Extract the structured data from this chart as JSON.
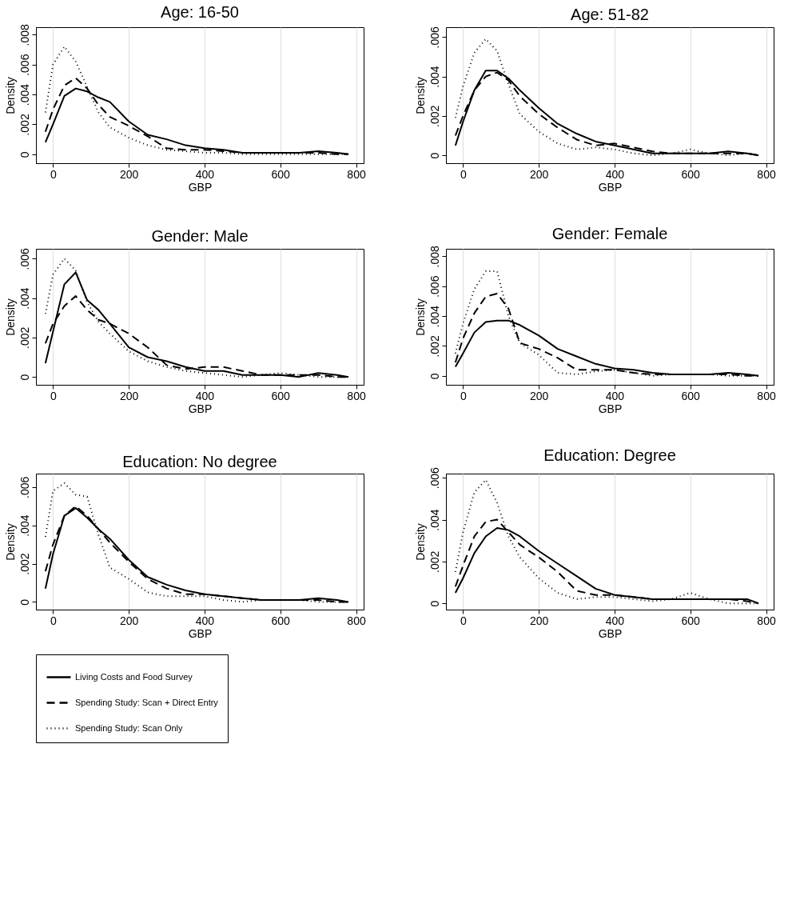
{
  "chart_data": [
    {
      "type": "line",
      "title": "Age: 16-50",
      "xlabel": "GBP",
      "ylabel": "Density",
      "x": [
        -20,
        0,
        30,
        60,
        90,
        120,
        150,
        200,
        250,
        300,
        350,
        400,
        450,
        500,
        550,
        600,
        650,
        700,
        750,
        780
      ],
      "xlim": [
        -45,
        820
      ],
      "xticks": [
        0,
        200,
        400,
        600,
        800
      ],
      "ylim": [
        -0.0006,
        0.0085
      ],
      "yticks": [
        {
          "value": 0,
          "label": "0"
        },
        {
          "value": 0.002,
          "label": ".002"
        },
        {
          "value": 0.004,
          "label": ".004"
        },
        {
          "value": 0.006,
          "label": ".006"
        },
        {
          "value": 0.008,
          "label": ".008"
        }
      ],
      "grid": "x",
      "legend": "bottom",
      "series": [
        {
          "name": "Living Costs and Food Survey",
          "color": "#000000",
          "line_style": "solid",
          "values": [
            0.0008,
            0.002,
            0.0039,
            0.0044,
            0.0042,
            0.0038,
            0.0035,
            0.0022,
            0.0013,
            0.001,
            0.0006,
            0.0004,
            0.0003,
            0.0001,
            0.0001,
            0.0001,
            0.0001,
            0.0002,
            0.0001,
            0
          ]
        },
        {
          "name": "Spending Study: Scan + Direct Entry",
          "color": "#000000",
          "line_style": "dashed",
          "values": [
            0.0015,
            0.003,
            0.0046,
            0.0051,
            0.0044,
            0.0033,
            0.0025,
            0.0019,
            0.0012,
            0.0004,
            0.0003,
            0.0003,
            0.0002,
            0.0001,
            0.0001,
            0.0001,
            0.0001,
            0.0001,
            0,
            0
          ]
        },
        {
          "name": "Spending Study: Scan Only",
          "color": "#000000",
          "line_style": "dotted",
          "values": [
            0.0028,
            0.006,
            0.0072,
            0.0062,
            0.0045,
            0.0028,
            0.0018,
            0.0011,
            0.0006,
            0.0003,
            0.0002,
            0.0001,
            0.0001,
            0,
            0,
            0,
            0,
            0,
            0,
            0
          ]
        }
      ]
    },
    {
      "type": "line",
      "title": "Age: 51-82",
      "xlabel": "GBP",
      "ylabel": "Density",
      "x": [
        -20,
        0,
        30,
        60,
        90,
        120,
        150,
        200,
        250,
        300,
        350,
        400,
        450,
        500,
        550,
        600,
        650,
        700,
        750,
        780
      ],
      "xlim": [
        -45,
        820
      ],
      "xticks": [
        0,
        200,
        400,
        600,
        800
      ],
      "ylim": [
        -0.0004,
        0.0065
      ],
      "yticks": [
        {
          "value": 0,
          "label": "0"
        },
        {
          "value": 0.002,
          "label": ".002"
        },
        {
          "value": 0.004,
          "label": ".004"
        },
        {
          "value": 0.006,
          "label": ".006"
        }
      ],
      "grid": "x",
      "legend": "bottom",
      "series": [
        {
          "name": "Living Costs and Food Survey",
          "color": "#000000",
          "line_style": "solid",
          "values": [
            0.0005,
            0.0017,
            0.0033,
            0.0043,
            0.0043,
            0.0039,
            0.0033,
            0.0024,
            0.0016,
            0.0011,
            0.0007,
            0.0005,
            0.0003,
            0.0001,
            0.0001,
            0.0001,
            0.0001,
            0.0002,
            0.0001,
            0
          ]
        },
        {
          "name": "Spending Study: Scan + Direct Entry",
          "color": "#000000",
          "line_style": "dashed",
          "values": [
            0.001,
            0.002,
            0.0033,
            0.004,
            0.0042,
            0.0038,
            0.003,
            0.0021,
            0.0014,
            0.0008,
            0.0005,
            0.0006,
            0.0004,
            0.0002,
            0.0001,
            0.0001,
            0.0001,
            0.0001,
            0.0001,
            0
          ]
        },
        {
          "name": "Spending Study: Scan Only",
          "color": "#000000",
          "line_style": "dotted",
          "values": [
            0.0019,
            0.0035,
            0.0052,
            0.0059,
            0.0053,
            0.0036,
            0.0021,
            0.0012,
            0.0006,
            0.0003,
            0.0004,
            0.0003,
            0.0001,
            0,
            0.0001,
            0.0003,
            0.0001,
            0,
            0.0001,
            0
          ]
        }
      ]
    },
    {
      "type": "line",
      "title": "Gender: Male",
      "xlabel": "GBP",
      "ylabel": "Density",
      "x": [
        -20,
        0,
        30,
        60,
        90,
        120,
        150,
        200,
        250,
        300,
        350,
        400,
        450,
        500,
        550,
        600,
        650,
        700,
        750,
        780
      ],
      "xlim": [
        -45,
        820
      ],
      "xticks": [
        0,
        200,
        400,
        600,
        800
      ],
      "ylim": [
        -0.0004,
        0.0065
      ],
      "yticks": [
        {
          "value": 0,
          "label": "0"
        },
        {
          "value": 0.002,
          "label": ".002"
        },
        {
          "value": 0.004,
          "label": ".004"
        },
        {
          "value": 0.006,
          "label": ".006"
        }
      ],
      "grid": "x",
      "legend": "bottom",
      "series": [
        {
          "name": "Living Costs and Food Survey",
          "color": "#000000",
          "line_style": "solid",
          "values": [
            0.0007,
            0.0023,
            0.0047,
            0.0053,
            0.0039,
            0.0034,
            0.0027,
            0.0015,
            0.001,
            0.0008,
            0.0005,
            0.0003,
            0.0003,
            0.0001,
            0.0001,
            0.0001,
            0,
            0.0002,
            0.0001,
            0
          ]
        },
        {
          "name": "Spending Study: Scan + Direct Entry",
          "color": "#000000",
          "line_style": "dashed",
          "values": [
            0.0017,
            0.0027,
            0.0036,
            0.0041,
            0.0034,
            0.0029,
            0.0027,
            0.0022,
            0.0015,
            0.0006,
            0.0004,
            0.0005,
            0.0005,
            0.0003,
            0.0001,
            0.0001,
            0.0001,
            0.0001,
            0,
            0
          ]
        },
        {
          "name": "Spending Study: Scan Only",
          "color": "#000000",
          "line_style": "dotted",
          "values": [
            0.0032,
            0.0052,
            0.006,
            0.0054,
            0.0038,
            0.0028,
            0.0022,
            0.0013,
            0.0008,
            0.0005,
            0.0003,
            0.0002,
            0.0001,
            0,
            0.0001,
            0.0002,
            0.0001,
            0,
            0,
            0
          ]
        }
      ]
    },
    {
      "type": "line",
      "title": "Gender: Female",
      "xlabel": "GBP",
      "ylabel": "Density",
      "x": [
        -20,
        0,
        30,
        60,
        90,
        120,
        150,
        200,
        250,
        300,
        350,
        400,
        450,
        500,
        550,
        600,
        650,
        700,
        750,
        780
      ],
      "xlim": [
        -45,
        820
      ],
      "xticks": [
        0,
        200,
        400,
        600,
        800
      ],
      "ylim": [
        -0.0006,
        0.0085
      ],
      "yticks": [
        {
          "value": 0,
          "label": "0"
        },
        {
          "value": 0.002,
          "label": ".002"
        },
        {
          "value": 0.004,
          "label": ".004"
        },
        {
          "value": 0.006,
          "label": ".006"
        },
        {
          "value": 0.008,
          "label": ".008"
        }
      ],
      "grid": "x",
      "legend": "bottom",
      "series": [
        {
          "name": "Living Costs and Food Survey",
          "color": "#000000",
          "line_style": "solid",
          "values": [
            0.0006,
            0.0015,
            0.0029,
            0.0036,
            0.0037,
            0.0037,
            0.0034,
            0.0027,
            0.0018,
            0.0013,
            0.0008,
            0.0005,
            0.0004,
            0.0002,
            0.0001,
            0.0001,
            0.0001,
            0.0002,
            0.0001,
            0
          ]
        },
        {
          "name": "Spending Study: Scan + Direct Entry",
          "color": "#000000",
          "line_style": "dashed",
          "values": [
            0.0009,
            0.0025,
            0.0042,
            0.0053,
            0.0055,
            0.0045,
            0.0022,
            0.0018,
            0.0012,
            0.0004,
            0.0004,
            0.0004,
            0.0002,
            0.0001,
            0.0001,
            0.0001,
            0.0001,
            0.0001,
            0,
            0
          ]
        },
        {
          "name": "Spending Study: Scan Only",
          "color": "#000000",
          "line_style": "dotted",
          "values": [
            0.0015,
            0.0035,
            0.0058,
            0.007,
            0.007,
            0.004,
            0.0022,
            0.0014,
            0.0002,
            0.0001,
            0.0003,
            0.0004,
            0.0002,
            0,
            0.0001,
            0.0001,
            0.0001,
            0,
            0,
            0
          ]
        }
      ]
    },
    {
      "type": "line",
      "title": "Education: No degree",
      "xlabel": "GBP",
      "ylabel": "Density",
      "x": [
        -20,
        0,
        30,
        60,
        90,
        120,
        150,
        200,
        250,
        300,
        350,
        400,
        450,
        500,
        550,
        600,
        650,
        700,
        750,
        780
      ],
      "xlim": [
        -45,
        820
      ],
      "xticks": [
        0,
        200,
        400,
        600,
        800
      ],
      "ylim": [
        -0.0004,
        0.0067
      ],
      "yticks": [
        {
          "value": 0,
          "label": "0"
        },
        {
          "value": 0.002,
          "label": ".002"
        },
        {
          "value": 0.004,
          "label": ".004"
        },
        {
          "value": 0.006,
          "label": ".006"
        }
      ],
      "grid": "x",
      "legend": "bottom",
      "series": [
        {
          "name": "Living Costs and Food Survey",
          "color": "#000000",
          "line_style": "solid",
          "values": [
            0.0007,
            0.0025,
            0.0045,
            0.0049,
            0.0044,
            0.0038,
            0.0033,
            0.0022,
            0.0013,
            0.0009,
            0.0006,
            0.0004,
            0.0003,
            0.0002,
            0.0001,
            0.0001,
            0.0001,
            0.0002,
            0.0001,
            0
          ]
        },
        {
          "name": "Spending Study: Scan + Direct Entry",
          "color": "#000000",
          "line_style": "dashed",
          "values": [
            0.0016,
            0.003,
            0.0045,
            0.005,
            0.0045,
            0.0038,
            0.0031,
            0.0021,
            0.0012,
            0.0007,
            0.0004,
            0.0004,
            0.0003,
            0.0002,
            0.0001,
            0.0001,
            0.0001,
            0.0001,
            0,
            0
          ]
        },
        {
          "name": "Spending Study: Scan Only",
          "color": "#000000",
          "line_style": "dotted",
          "values": [
            0.0034,
            0.0058,
            0.0062,
            0.0056,
            0.0055,
            0.0035,
            0.0018,
            0.0012,
            0.0005,
            0.0003,
            0.0003,
            0.0003,
            0.0001,
            0,
            0.0001,
            0.0001,
            0.0001,
            0,
            0,
            0
          ]
        }
      ]
    },
    {
      "type": "line",
      "title": "Education: Degree",
      "xlabel": "GBP",
      "ylabel": "Density",
      "x": [
        -20,
        0,
        30,
        60,
        90,
        120,
        150,
        200,
        250,
        300,
        350,
        400,
        450,
        500,
        550,
        600,
        650,
        700,
        750,
        780
      ],
      "xlim": [
        -45,
        820
      ],
      "xticks": [
        0,
        200,
        400,
        600,
        800
      ],
      "ylim": [
        -0.0003,
        0.0062
      ],
      "yticks": [
        {
          "value": 0,
          "label": "0"
        },
        {
          "value": 0.002,
          "label": ".002"
        },
        {
          "value": 0.004,
          "label": ".004"
        },
        {
          "value": 0.006,
          "label": ".006"
        }
      ],
      "grid": "x",
      "legend": "bottom",
      "series": [
        {
          "name": "Living Costs and Food Survey",
          "color": "#000000",
          "line_style": "solid",
          "values": [
            0.0005,
            0.0012,
            0.0024,
            0.0032,
            0.0036,
            0.0035,
            0.0032,
            0.0025,
            0.0019,
            0.0013,
            0.0007,
            0.0004,
            0.0003,
            0.0002,
            0.0002,
            0.0002,
            0.0002,
            0.0002,
            0.0002,
            0
          ]
        },
        {
          "name": "Spending Study: Scan + Direct Entry",
          "color": "#000000",
          "line_style": "dashed",
          "values": [
            0.0008,
            0.0018,
            0.0032,
            0.0039,
            0.004,
            0.0034,
            0.0028,
            0.0022,
            0.0015,
            0.0006,
            0.0004,
            0.0004,
            0.0003,
            0.0002,
            0.0002,
            0.0002,
            0.0002,
            0.0002,
            0.0001,
            0
          ]
        },
        {
          "name": "Spending Study: Scan Only",
          "color": "#000000",
          "line_style": "dotted",
          "values": [
            0.0015,
            0.0034,
            0.0053,
            0.0059,
            0.0048,
            0.0032,
            0.0022,
            0.0012,
            0.0005,
            0.0002,
            0.0003,
            0.0003,
            0.0002,
            0.0001,
            0.0002,
            0.0005,
            0.0002,
            0,
            0,
            0
          ]
        }
      ]
    }
  ]
}
